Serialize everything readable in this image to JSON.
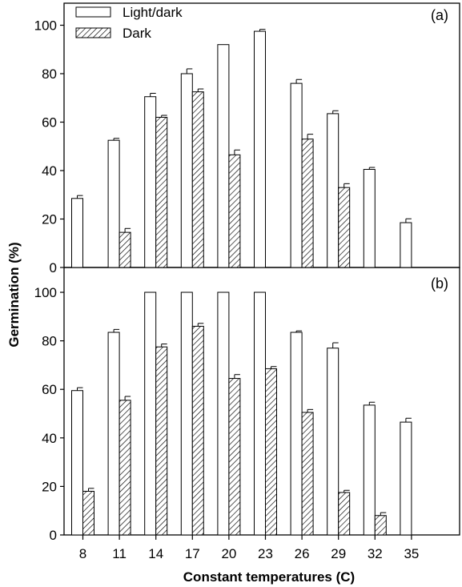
{
  "chart_data": [
    {
      "type": "bar",
      "panel_label": "(a)",
      "categories": [
        "8",
        "11",
        "14",
        "17",
        "20",
        "23",
        "26",
        "29",
        "32",
        "35"
      ],
      "series": [
        {
          "name": "Light/dark",
          "values": [
            28.5,
            52.5,
            70.5,
            80,
            92,
            97.5,
            76,
            63.5,
            40.5,
            18.5
          ],
          "errors": [
            1.2,
            0.8,
            1.4,
            2.0,
            0,
            0.8,
            1.6,
            1.2,
            0.8,
            1.6
          ]
        },
        {
          "name": "Dark",
          "values": [
            null,
            14.5,
            62,
            72.5,
            46.5,
            null,
            53,
            33,
            null,
            null
          ],
          "errors": [
            0,
            1.6,
            0.8,
            1.2,
            2.0,
            0,
            2.0,
            1.6,
            0,
            0
          ]
        }
      ],
      "ylim": [
        0,
        100
      ],
      "yticks": [
        0,
        20,
        40,
        60,
        80,
        100
      ],
      "legend_position": "top-left"
    },
    {
      "type": "bar",
      "panel_label": "(b)",
      "categories": [
        "8",
        "11",
        "14",
        "17",
        "20",
        "23",
        "26",
        "29",
        "32",
        "35"
      ],
      "series": [
        {
          "name": "Light/dark",
          "values": [
            59.5,
            83.5,
            100,
            100,
            100,
            100,
            83.5,
            77,
            53.5,
            46.5
          ],
          "errors": [
            1.2,
            1.2,
            0,
            0,
            0,
            0,
            0.6,
            2.2,
            1.2,
            1.6
          ]
        },
        {
          "name": "Dark",
          "values": [
            18,
            55.5,
            77.5,
            86,
            64.5,
            68.5,
            50.5,
            17.5,
            8,
            null
          ],
          "errors": [
            1.2,
            1.6,
            1.2,
            1.2,
            1.6,
            0.9,
            1.2,
            0.9,
            1.2,
            0
          ]
        }
      ],
      "ylim": [
        0,
        100
      ],
      "yticks": [
        0,
        20,
        40,
        60,
        80,
        100
      ]
    }
  ],
  "ylabel": "Germination (%)",
  "xlabel": "Constant temperatures (C)",
  "colors": {
    "bar_fill": "#ffffff",
    "stroke": "#000000"
  }
}
